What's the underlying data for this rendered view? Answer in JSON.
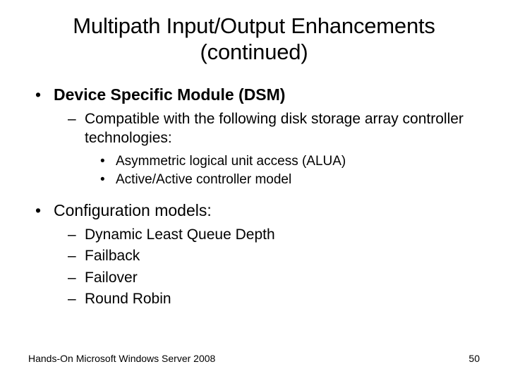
{
  "title_line1": "Multipath Input/Output Enhancements",
  "title_line2": "(continued)",
  "bullets": {
    "b1": "Device Specific Module (DSM)",
    "b1_1": "Compatible with the following disk storage array controller technologies:",
    "b1_1_1": "Asymmetric logical unit access (ALUA)",
    "b1_1_2": "Active/Active controller model",
    "b2": "Configuration models:",
    "b2_1": "Dynamic Least Queue Depth",
    "b2_2": "Failback",
    "b2_3": "Failover",
    "b2_4": "Round Robin"
  },
  "footer_text": "Hands-On Microsoft Windows Server 2008",
  "page_number": "50",
  "colors": {
    "background": "#ffffff",
    "text": "#000000"
  },
  "fonts": {
    "title_size": 31,
    "l1_size": 23,
    "l2_size": 21,
    "l3_size": 19,
    "footer_size": 14
  }
}
